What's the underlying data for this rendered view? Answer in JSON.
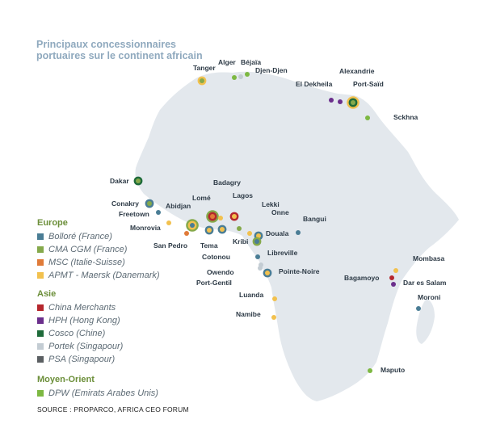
{
  "title": [
    "Principaux concessionnaires",
    "portuaires sur le continent africain"
  ],
  "legend": [
    {
      "heading": "Europe",
      "items": [
        {
          "label": "Bolloré (France)",
          "color": "#4a7d95"
        },
        {
          "label": "CMA CGM (France)",
          "color": "#85a94b"
        },
        {
          "label": "MSC (Italie-Suisse)",
          "color": "#e07b39"
        },
        {
          "label": "APMT - Maersk (Danemark)",
          "color": "#f2c14e"
        }
      ]
    },
    {
      "heading": "Asie",
      "items": [
        {
          "label": "China Merchants",
          "color": "#b5272d"
        },
        {
          "label": "HPH (Hong Kong)",
          "color": "#6b2f8c"
        },
        {
          "label": "Cosco (Chine)",
          "color": "#1e6b3a"
        },
        {
          "label": "Portek (Singapour)",
          "color": "#c3ccd3"
        },
        {
          "label": "PSA (Singapour)",
          "color": "#5b5f62"
        }
      ]
    },
    {
      "heading": "Moyen-Orient",
      "items": [
        {
          "label": "DPW (Emirats Arabes Unis)",
          "color": "#7db842"
        }
      ]
    }
  ],
  "ports": [
    {
      "name": "Tanger",
      "operators": [
        "APMT - Maersk (Danemark)",
        "CMA CGM (France)"
      ]
    },
    {
      "name": "Alger",
      "operators": [
        "DPW (Emirats Arabes Unis)"
      ]
    },
    {
      "name": "Béjaïa",
      "operators": [
        "Portek (Singapour)"
      ]
    },
    {
      "name": "Djen-Djen",
      "operators": [
        "DPW (Emirats Arabes Unis)"
      ]
    },
    {
      "name": "El Dekheila",
      "operators": [
        "HPH (Hong Kong)"
      ]
    },
    {
      "name": "Alexandrie",
      "operators": [
        "HPH (Hong Kong)"
      ]
    },
    {
      "name": "Port-Saïd",
      "operators": [
        "APMT - Maersk (Danemark)",
        "Cosco (Chine)",
        "CMA CGM (France)"
      ]
    },
    {
      "name": "Sckhna",
      "operators": [
        "DPW (Emirats Arabes Unis)"
      ]
    },
    {
      "name": "Dakar",
      "operators": [
        "Cosco (Chine)",
        "CMA CGM (France)"
      ]
    },
    {
      "name": "Conakry",
      "operators": [
        "Bolloré (France)",
        "CMA CGM (France)"
      ]
    },
    {
      "name": "Freetown",
      "operators": [
        "Bolloré (France)"
      ]
    },
    {
      "name": "Monrovia",
      "operators": [
        "APMT - Maersk (Danemark)"
      ]
    },
    {
      "name": "Abidjan",
      "operators": [
        "CMA CGM (France)",
        "APMT - Maersk (Danemark)",
        "Bolloré (France)"
      ]
    },
    {
      "name": "San Pedro",
      "operators": [
        "MSC (Italie-Suisse)"
      ]
    },
    {
      "name": "Tema",
      "operators": [
        "Bolloré (France)",
        "APMT - Maersk (Danemark)"
      ]
    },
    {
      "name": "Lomé",
      "operators": [
        "CMA CGM (France)",
        "China Merchants",
        "MSC (Italie-Suisse)"
      ]
    },
    {
      "name": "Cotonou",
      "operators": [
        "Bolloré (France)",
        "APMT - Maersk (Danemark)"
      ]
    },
    {
      "name": "Badagry",
      "operators": [
        "APMT - Maersk (Danemark)"
      ]
    },
    {
      "name": "Lagos",
      "operators": [
        "China Merchants",
        "APMT - Maersk (Danemark)"
      ]
    },
    {
      "name": "Lekki",
      "operators": [
        "CMA CGM (France)"
      ]
    },
    {
      "name": "Onne",
      "operators": [
        "APMT - Maersk (Danemark)"
      ]
    },
    {
      "name": "Douala",
      "operators": [
        "Bolloré (France)",
        "APMT - Maersk (Danemark)"
      ]
    },
    {
      "name": "Kribi",
      "operators": [
        "CMA CGM (France)",
        "Bolloré (France)"
      ]
    },
    {
      "name": "Bangui",
      "operators": [
        "Bolloré (France)"
      ]
    },
    {
      "name": "Libreville",
      "operators": [
        "Bolloré (France)"
      ]
    },
    {
      "name": "Owendo",
      "operators": [
        "Portek (Singapour)"
      ]
    },
    {
      "name": "Port-Gentil",
      "operators": [
        "Portek (Singapour)"
      ]
    },
    {
      "name": "Pointe-Noire",
      "operators": [
        "Bolloré (France)",
        "APMT - Maersk (Danemark)"
      ]
    },
    {
      "name": "Luanda",
      "operators": [
        "APMT - Maersk (Danemark)"
      ]
    },
    {
      "name": "Namibe",
      "operators": [
        "APMT - Maersk (Danemark)"
      ]
    },
    {
      "name": "Mombasa",
      "operators": [
        "APMT - Maersk (Danemark)"
      ]
    },
    {
      "name": "Bagamoyo",
      "operators": [
        "China Merchants"
      ]
    },
    {
      "name": "Dar es Salam",
      "operators": [
        "HPH (Hong Kong)"
      ]
    },
    {
      "name": "Moroni",
      "operators": [
        "Bolloré (France)"
      ]
    },
    {
      "name": "Maputo",
      "operators": [
        "DPW (Emirats Arabes Unis)"
      ]
    }
  ],
  "source": "SOURCE : PROPARCO, AFRICA CEO FORUM",
  "colors": {
    "land": "#e3e8ed",
    "background": "#ffffff",
    "title": "#8fa9be",
    "legend_heading": "#6c8f3a"
  }
}
